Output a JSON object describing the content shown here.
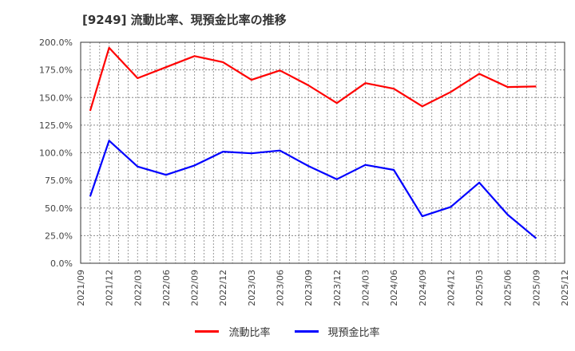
{
  "title": "[9249]  流動比率、現預金比率の推移",
  "legend": {
    "items": [
      {
        "label": "流動比率",
        "color": "#ff0000"
      },
      {
        "label": "現預金比率",
        "color": "#0000ff"
      }
    ]
  },
  "chart_data": {
    "type": "line",
    "title": "[9249]  流動比率、現預金比率の推移",
    "xlabel": "",
    "ylabel": "",
    "ylim": [
      0,
      200
    ],
    "grid": true,
    "legend_position": "bottom",
    "y_ticks": [
      "0.0%",
      "25.0%",
      "50.0%",
      "75.0%",
      "100.0%",
      "125.0%",
      "150.0%",
      "175.0%",
      "200.0%"
    ],
    "x_ticks": [
      "2021/09",
      "2021/12",
      "2022/03",
      "2022/06",
      "2022/09",
      "2022/12",
      "2023/03",
      "2023/06",
      "2023/09",
      "2023/12",
      "2024/03",
      "2024/06",
      "2024/09",
      "2024/12",
      "2025/03",
      "2025/06",
      "2025/09",
      "2025/12"
    ],
    "x": [
      "2021/10",
      "2021/12",
      "2022/03",
      "2022/06",
      "2022/09",
      "2022/12",
      "2023/03",
      "2023/06",
      "2023/09",
      "2023/12",
      "2024/03",
      "2024/06",
      "2024/09",
      "2024/12",
      "2025/03",
      "2025/06",
      "2025/09"
    ],
    "series": [
      {
        "name": "流動比率",
        "color": "#ff0000",
        "values": [
          138.0,
          195.0,
          167.5,
          177.5,
          187.5,
          182.0,
          166.0,
          174.5,
          161.0,
          145.0,
          163.0,
          158.0,
          142.0,
          155.0,
          171.5,
          159.5,
          160.0
        ]
      },
      {
        "name": "現預金比率",
        "color": "#0000ff",
        "values": [
          60.5,
          111.0,
          87.5,
          80.0,
          88.5,
          101.0,
          99.5,
          102.0,
          88.0,
          76.0,
          89.0,
          84.5,
          42.5,
          51.0,
          73.0,
          44.0,
          22.5
        ]
      }
    ]
  }
}
